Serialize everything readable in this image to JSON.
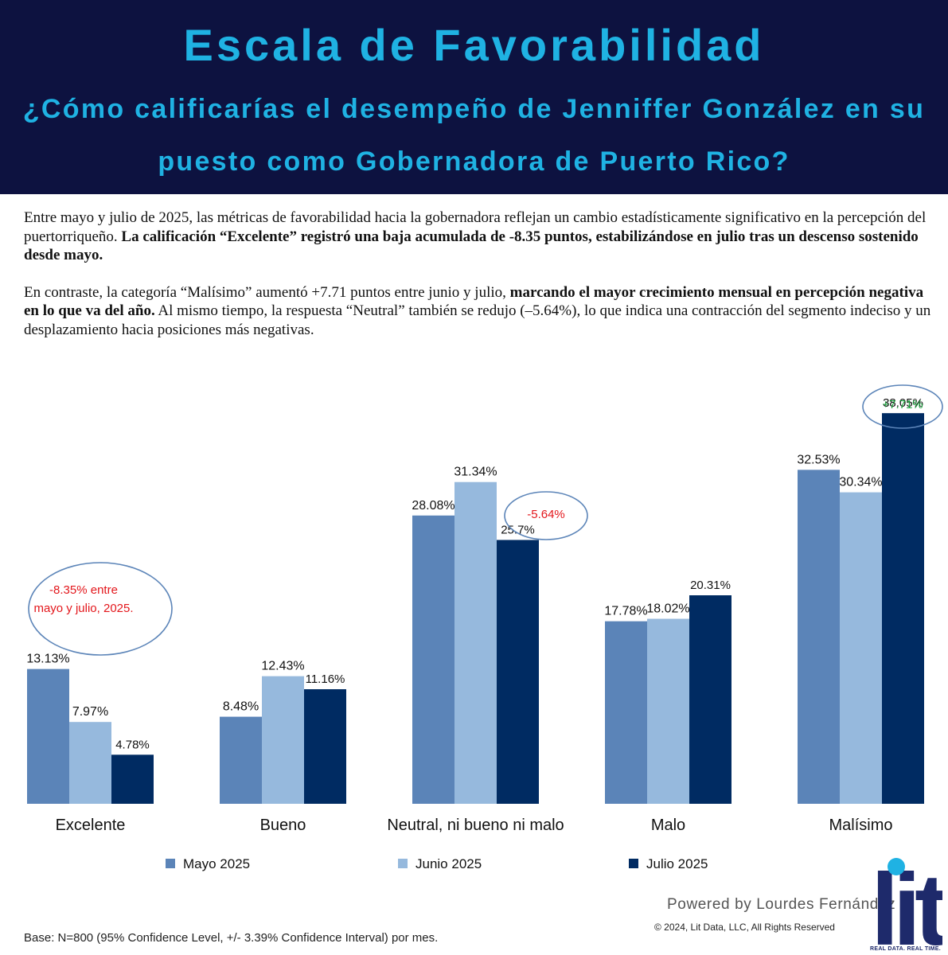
{
  "header": {
    "title": "Escala de Favorabilidad",
    "subtitle": "¿Cómo calificarías el desempeño de Jenniffer González en su puesto como Gobernadora de Puerto Rico?"
  },
  "intro": {
    "p1_text": "Entre mayo y julio de 2025, las métricas de favorabilidad hacia la gobernadora reflejan un cambio estadísticamente significativo en la percepción del puertorriqueño. ",
    "p1_bold": "La calificación “Excelente” registró una baja acumulada de -8.35 puntos, estabilizándose en julio tras un descenso sostenido desde mayo.",
    "p2_text1": "En contraste, la categoría “Malísimo” aumentó +7.71 puntos entre junio y julio, ",
    "p2_bold": "marcando el mayor crecimiento mensual en percepción negativa en lo que va del año.",
    "p2_text2": " Al mismo tiempo, la respuesta “Neutral” también se redujo (–5.64%), lo que indica una contracción del segmento indeciso y un desplazamiento hacia posiciones más negativas."
  },
  "chart_data": {
    "type": "bar",
    "categories": [
      "Excelente",
      "Bueno",
      "Neutral, ni bueno ni malo",
      "Malo",
      "Malísimo"
    ],
    "series": [
      {
        "name": "Mayo 2025",
        "values": [
          13.13,
          8.48,
          28.08,
          17.78,
          32.53
        ],
        "labels": [
          "13.13%",
          "8.48%",
          "28.08%",
          "17.78%",
          "32.53%"
        ]
      },
      {
        "name": "Junio 2025",
        "values": [
          7.97,
          12.43,
          31.34,
          18.02,
          30.34
        ],
        "labels": [
          "7.97%",
          "12.43%",
          "31.34%",
          "18.02%",
          "30.34%"
        ]
      },
      {
        "name": "Julio 2025",
        "values": [
          4.78,
          11.16,
          25.7,
          20.31,
          38.05
        ],
        "labels": [
          "4.78%",
          "11.16%",
          "25.7%",
          "20.31%",
          "38.05%"
        ]
      }
    ],
    "colors": [
      "#5b84b8",
      "#96b9dd",
      "#002b62"
    ],
    "ylim": [
      0,
      40
    ],
    "legend_position": "bottom",
    "grid": false,
    "annotations": [
      {
        "text_lines": [
          "-8.35% entre",
          "mayo y julio, 2025."
        ],
        "color": "#e3161b"
      },
      {
        "text_lines": [
          "-5.64%"
        ],
        "color": "#e3161b"
      },
      {
        "text_lines": [
          "+7.71%"
        ],
        "color": "#17a23a"
      }
    ]
  },
  "footer": {
    "powered_by": "Powered by Lourdes Fernández",
    "copyright": "© 2024, Lit Data, LLC, All Rights Reserved",
    "base_note": "Base: N=800 (95% Confidence Level, +/- 3.39% Confidence Interval) por mes.",
    "logo_text": "lit",
    "logo_tagline": "REAL DATA. REAL TIME."
  }
}
